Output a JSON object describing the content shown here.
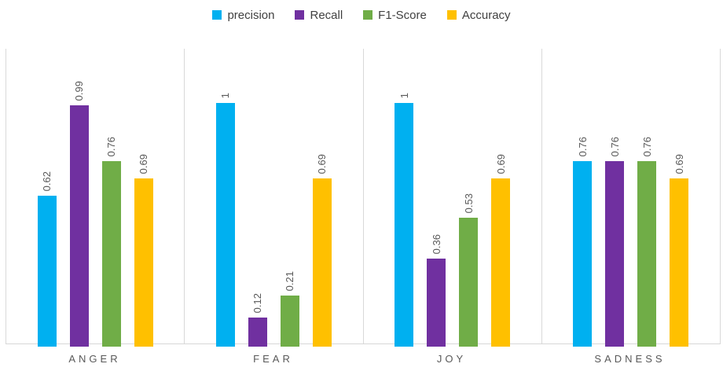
{
  "chart_data": {
    "type": "bar",
    "title": "",
    "categories": [
      "ANGER",
      "FEAR",
      "JOY",
      "SADNESS"
    ],
    "series": [
      {
        "name": "precision",
        "color": "#00B0F0",
        "values": [
          0.62,
          1,
          1,
          0.76
        ]
      },
      {
        "name": "Recall",
        "color": "#7030A0",
        "values": [
          0.99,
          0.12,
          0.36,
          0.76
        ]
      },
      {
        "name": "F1-Score",
        "color": "#70AD47",
        "values": [
          0.76,
          0.21,
          0.53,
          0.76
        ]
      },
      {
        "name": "Accuracy",
        "color": "#FFC000",
        "values": [
          0.69,
          0.69,
          0.69,
          0.69
        ]
      }
    ],
    "xlabel": "",
    "ylabel": "",
    "ylim": [
      0,
      1.21
    ],
    "value_axis_visible": false,
    "grid": "off",
    "legend_position": "top",
    "data_labels": "rotated-vertical",
    "panel_separators": true
  },
  "style": {
    "separator_color": "#D9D9D9",
    "axis_line_color": "#D6D6D6",
    "data_label_color": "#595959",
    "category_label_color": "#595959",
    "legend_text_color": "#404040"
  }
}
